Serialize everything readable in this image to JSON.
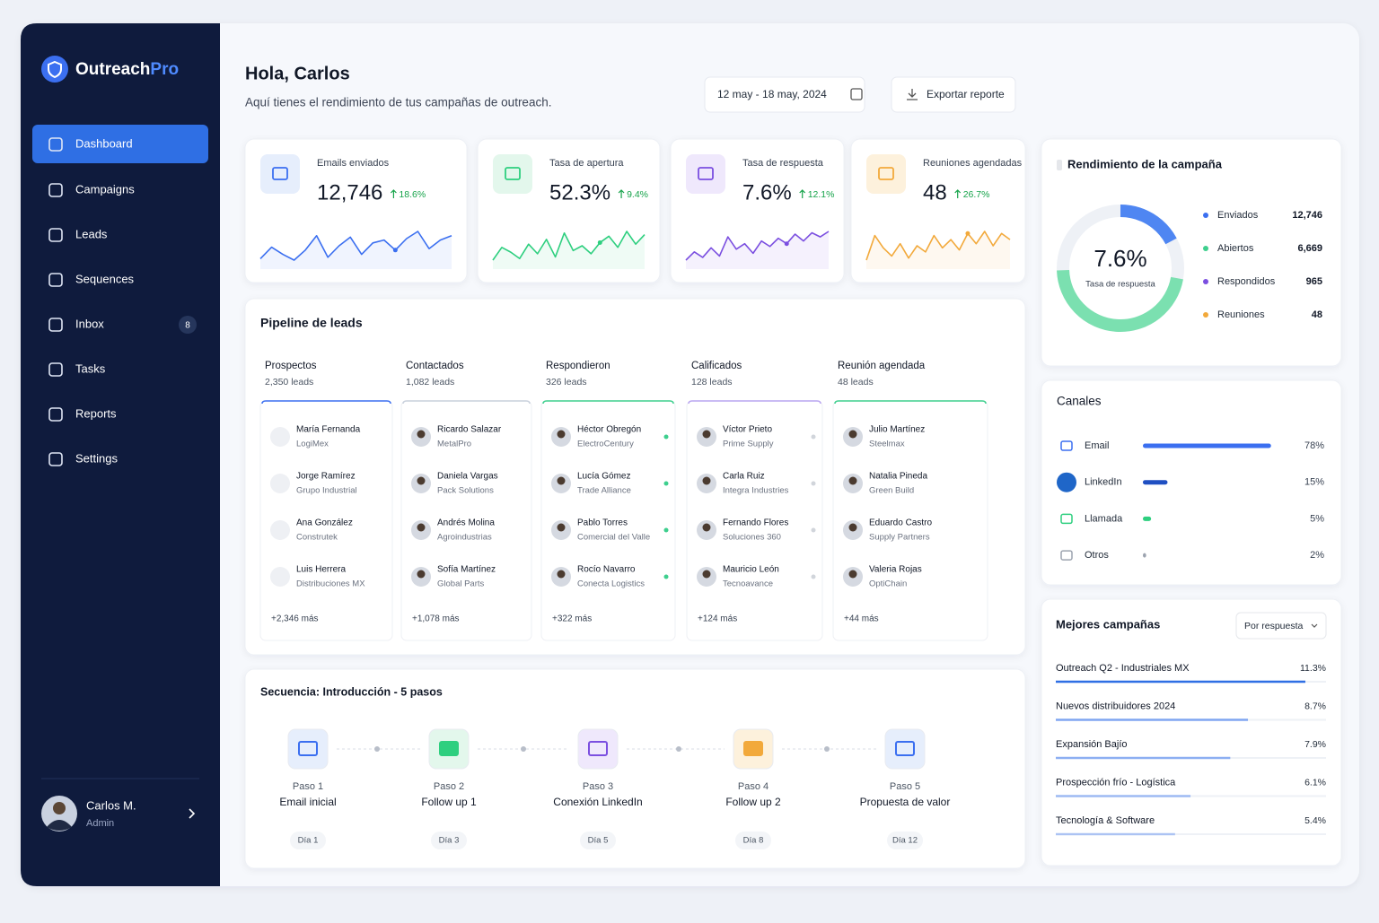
{
  "brand": {
    "name": "Outreach",
    "accent": "Pro"
  },
  "nav": [
    {
      "label": "Dashboard"
    },
    {
      "label": "Campaigns"
    },
    {
      "label": "Leads"
    },
    {
      "label": "Sequences"
    },
    {
      "label": "Inbox",
      "badge": "8"
    },
    {
      "label": "Tasks"
    },
    {
      "label": "Reports"
    },
    {
      "label": "Settings"
    }
  ],
  "user": {
    "name": "Carlos M.",
    "role": "Admin"
  },
  "header": {
    "greeting": "Hola, Carlos",
    "subtitle": "Aquí tienes el rendimiento de tus campañas de outreach.",
    "date_range": "12 may - 18 may, 2024",
    "export": "Exportar reporte"
  },
  "kpis": [
    {
      "label": "Emails enviados",
      "value": "12,746",
      "delta": "18.6%",
      "spark": [
        30,
        38,
        33,
        29,
        36,
        46,
        31,
        39,
        45,
        33,
        41,
        43,
        36,
        44,
        49,
        37,
        43,
        46
      ]
    },
    {
      "label": "Tasa de apertura",
      "value": "52.3%",
      "delta": "9.4%",
      "spark": [
        30,
        38,
        35,
        31,
        40,
        34,
        43,
        32,
        47,
        36,
        39,
        34,
        41,
        45,
        38,
        48,
        40,
        46
      ]
    },
    {
      "label": "Tasa de respuesta",
      "value": "7.6%",
      "delta": "12.1%",
      "spark": [
        28,
        34,
        30,
        37,
        31,
        45,
        36,
        40,
        33,
        42,
        38,
        44,
        40,
        47,
        42,
        48,
        45,
        49
      ]
    },
    {
      "label": "Reuniones agendadas",
      "value": "48",
      "delta": "26.7%",
      "spark": [
        34,
        46,
        40,
        36,
        42,
        35,
        41,
        38,
        46,
        40,
        44,
        39,
        47,
        42,
        48,
        41,
        47,
        44
      ]
    }
  ],
  "pipeline": {
    "title": "Pipeline de leads",
    "stages": [
      {
        "name": "Prospectos",
        "count": "2,350 leads",
        "leads": [
          {
            "name": "María Fernanda",
            "company": "LogiMex"
          },
          {
            "name": "Jorge Ramírez",
            "company": "Grupo Industrial"
          },
          {
            "name": "Ana González",
            "company": "Construtek"
          },
          {
            "name": "Luis Herrera",
            "company": "Distribuciones MX"
          }
        ],
        "more": "+2,346 más"
      },
      {
        "name": "Contactados",
        "count": "1,082 leads",
        "leads": [
          {
            "name": "Ricardo Salazar",
            "company": "MetalPro"
          },
          {
            "name": "Daniela Vargas",
            "company": "Pack Solutions"
          },
          {
            "name": "Andrés Molina",
            "company": "Agroindustrias"
          },
          {
            "name": "Sofía Martínez",
            "company": "Global Parts"
          }
        ],
        "more": "+1,078 más"
      },
      {
        "name": "Respondieron",
        "count": "326 leads",
        "leads": [
          {
            "name": "Héctor Obregón",
            "company": "ElectroCentury"
          },
          {
            "name": "Lucía Gómez",
            "company": "Trade Alliance"
          },
          {
            "name": "Pablo Torres",
            "company": "Comercial del Valle"
          },
          {
            "name": "Rocío Navarro",
            "company": "Conecta Logistics"
          }
        ],
        "more": "+322 más"
      },
      {
        "name": "Calificados",
        "count": "128 leads",
        "leads": [
          {
            "name": "Víctor Prieto",
            "company": "Prime Supply"
          },
          {
            "name": "Carla Ruiz",
            "company": "Integra Industries"
          },
          {
            "name": "Fernando Flores",
            "company": "Soluciones 360"
          },
          {
            "name": "Mauricio León",
            "company": "Tecnoavance"
          }
        ],
        "more": "+124 más"
      },
      {
        "name": "Reunión agendada",
        "count": "48 leads",
        "leads": [
          {
            "name": "Julio Martínez",
            "company": "Steelmax"
          },
          {
            "name": "Natalia Pineda",
            "company": "Green Build"
          },
          {
            "name": "Eduardo Castro",
            "company": "Supply Partners"
          },
          {
            "name": "Valeria Rojas",
            "company": "OptiChain"
          }
        ],
        "more": "+44 más"
      }
    ]
  },
  "sequence": {
    "title": "Secuencia: Introducción - 5 pasos",
    "steps": [
      {
        "step": "Paso 1",
        "name": "Email inicial",
        "day": "Día 1"
      },
      {
        "step": "Paso 2",
        "name": "Follow up 1",
        "day": "Día 3"
      },
      {
        "step": "Paso 3",
        "name": "Conexión LinkedIn",
        "day": "Día 5"
      },
      {
        "step": "Paso 4",
        "name": "Follow up 2",
        "day": "Día 8"
      },
      {
        "step": "Paso 5",
        "name": "Propuesta de valor",
        "day": "Día 12"
      }
    ]
  },
  "performance": {
    "title": "Rendimiento de la campaña",
    "center_value": "7.6%",
    "center_label": "Tasa de respuesta",
    "legend": [
      {
        "name": "Enviados",
        "value": "12,746"
      },
      {
        "name": "Abiertos",
        "value": "6,669"
      },
      {
        "name": "Respondidos",
        "value": "965"
      },
      {
        "name": "Reuniones",
        "value": "48"
      }
    ]
  },
  "channels": {
    "title": "Canales",
    "items": [
      {
        "name": "Email",
        "value": 78,
        "label": "78%"
      },
      {
        "name": "LinkedIn",
        "value": 15,
        "label": "15%"
      },
      {
        "name": "Llamada",
        "value": 5,
        "label": "5%"
      },
      {
        "name": "Otros",
        "value": 2,
        "label": "2%"
      }
    ]
  },
  "campaigns": {
    "title": "Mejores campañas",
    "filter": "Por respuesta",
    "items": [
      {
        "name": "Outreach Q2 - Industriales MX",
        "value": 11.3,
        "label": "11.3%"
      },
      {
        "name": "Nuevos distribuidores 2024",
        "value": 8.7,
        "label": "8.7%"
      },
      {
        "name": "Expansión Bajío",
        "value": 7.9,
        "label": "7.9%"
      },
      {
        "name": "Prospección frío - Logística",
        "value": 6.1,
        "label": "6.1%"
      },
      {
        "name": "Tecnología & Software",
        "value": 5.4,
        "label": "5.4%"
      }
    ]
  }
}
